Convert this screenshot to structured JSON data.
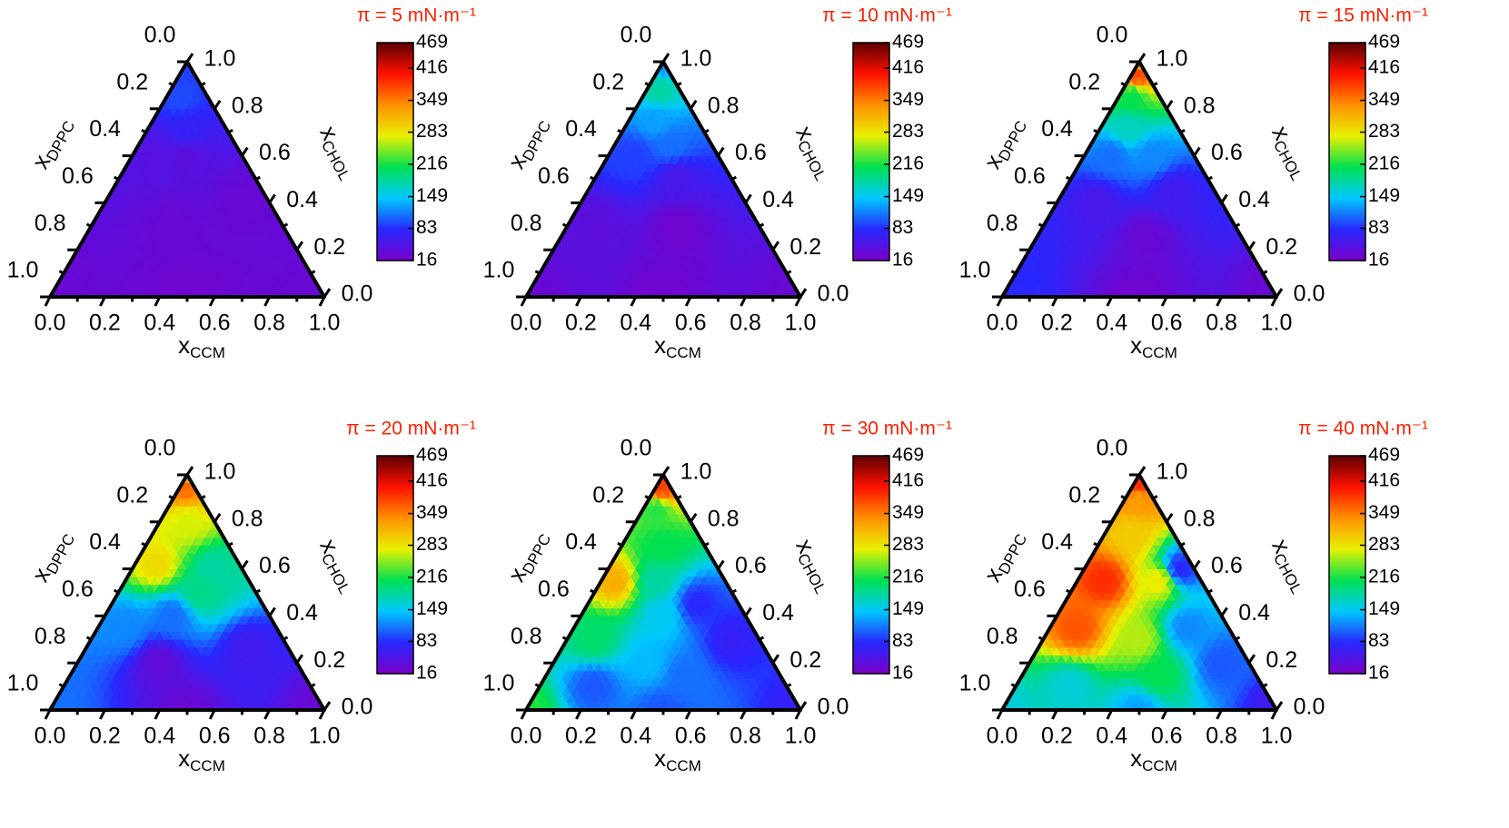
{
  "chart_data": [
    {
      "type": "ternary-contour",
      "title": "π = 5 mN·m⁻¹",
      "bottom_label": [
        "x",
        "CCM"
      ],
      "left_label": [
        "x",
        "DPPC"
      ],
      "right_label": [
        "x",
        "CHOL"
      ],
      "ccm_ticks": [
        {
          "value": 0,
          "label": "0.0"
        },
        {
          "value": 0.2,
          "label": "0.2"
        },
        {
          "value": 0.4,
          "label": "0.4"
        },
        {
          "value": 0.6,
          "label": "0.6"
        },
        {
          "value": 0.8,
          "label": "0.8"
        },
        {
          "value": 1,
          "label": "1.0"
        }
      ],
      "dppc_ticks": [
        {
          "value": 0,
          "label": "0.0"
        },
        {
          "value": 0.2,
          "label": "0.2"
        },
        {
          "value": 0.4,
          "label": "0.4"
        },
        {
          "value": 0.6,
          "label": "0.6"
        },
        {
          "value": 0.8,
          "label": "0.8"
        },
        {
          "value": 1,
          "label": "1.0"
        }
      ],
      "chol_ticks": [
        {
          "value": 0,
          "label": "0.0"
        },
        {
          "value": 0.2,
          "label": "0.2"
        },
        {
          "value": 0.4,
          "label": "0.4"
        },
        {
          "value": 0.6,
          "label": "0.6"
        },
        {
          "value": 0.8,
          "label": "0.8"
        },
        {
          "value": 1,
          "label": "1.0"
        }
      ],
      "ylim": [
        16,
        469
      ],
      "yticks": [
        16,
        83,
        149,
        216,
        283,
        349,
        416,
        469
      ],
      "colormap": [
        "#7a00c8",
        "#2828ff",
        "#00c8ff",
        "#00e050",
        "#e8f000",
        "#ff9000",
        "#ff1000",
        "#5a0000"
      ],
      "field": [
        [
          0,
          0,
          30
        ],
        [
          1,
          0,
          30
        ],
        [
          0.5,
          0,
          25
        ],
        [
          0.3,
          0.3,
          30
        ],
        [
          0.5,
          0.4,
          30
        ],
        [
          0.1,
          0.6,
          45
        ],
        [
          0.2,
          0.6,
          40
        ],
        [
          0.15,
          0.7,
          70
        ],
        [
          0.05,
          0.85,
          95
        ],
        [
          0,
          1,
          90
        ]
      ]
    },
    {
      "type": "ternary-contour",
      "title": "π = 10 mN·m⁻¹",
      "bottom_label": [
        "x",
        "CCM"
      ],
      "left_label": [
        "x",
        "DPPC"
      ],
      "right_label": [
        "x",
        "CHOL"
      ],
      "ccm_ticks": [
        {
          "value": 0,
          "label": "0.0"
        },
        {
          "value": 0.2,
          "label": "0.2"
        },
        {
          "value": 0.4,
          "label": "0.4"
        },
        {
          "value": 0.6,
          "label": "0.6"
        },
        {
          "value": 0.8,
          "label": "0.8"
        },
        {
          "value": 1,
          "label": "1.0"
        }
      ],
      "dppc_ticks": [
        {
          "value": 0,
          "label": "0.0"
        },
        {
          "value": 0.2,
          "label": "0.2"
        },
        {
          "value": 0.4,
          "label": "0.4"
        },
        {
          "value": 0.6,
          "label": "0.6"
        },
        {
          "value": 0.8,
          "label": "0.8"
        },
        {
          "value": 1,
          "label": "1.0"
        }
      ],
      "chol_ticks": [
        {
          "value": 0,
          "label": "0.0"
        },
        {
          "value": 0.2,
          "label": "0.2"
        },
        {
          "value": 0.4,
          "label": "0.4"
        },
        {
          "value": 0.6,
          "label": "0.6"
        },
        {
          "value": 0.8,
          "label": "0.8"
        },
        {
          "value": 1,
          "label": "1.0"
        }
      ],
      "ylim": [
        16,
        469
      ],
      "yticks": [
        16,
        83,
        149,
        216,
        283,
        349,
        416,
        469
      ],
      "colormap": [
        "#7a00c8",
        "#2828ff",
        "#00c8ff",
        "#00e050",
        "#e8f000",
        "#ff9000",
        "#ff1000",
        "#5a0000"
      ],
      "field": [
        [
          0,
          0,
          30
        ],
        [
          1,
          0,
          30
        ],
        [
          0.5,
          0,
          25
        ],
        [
          0.4,
          0.3,
          25
        ],
        [
          0.1,
          0.3,
          40
        ],
        [
          0.3,
          0.5,
          55
        ],
        [
          0.1,
          0.6,
          90
        ],
        [
          0.2,
          0.65,
          110
        ],
        [
          0.1,
          0.75,
          130
        ],
        [
          0.05,
          0.88,
          180
        ],
        [
          0,
          1,
          120
        ]
      ]
    },
    {
      "type": "ternary-contour",
      "title": "π = 15 mN·m⁻¹",
      "bottom_label": [
        "x",
        "CCM"
      ],
      "left_label": [
        "x",
        "DPPC"
      ],
      "right_label": [
        "x",
        "CHOL"
      ],
      "ccm_ticks": [
        {
          "value": 0,
          "label": "0.0"
        },
        {
          "value": 0.2,
          "label": "0.2"
        },
        {
          "value": 0.4,
          "label": "0.4"
        },
        {
          "value": 0.6,
          "label": "0.6"
        },
        {
          "value": 0.8,
          "label": "0.8"
        },
        {
          "value": 1,
          "label": "1.0"
        }
      ],
      "dppc_ticks": [
        {
          "value": 0,
          "label": "0.0"
        },
        {
          "value": 0.2,
          "label": "0.2"
        },
        {
          "value": 0.4,
          "label": "0.4"
        },
        {
          "value": 0.6,
          "label": "0.6"
        },
        {
          "value": 0.8,
          "label": "0.8"
        },
        {
          "value": 1,
          "label": "1.0"
        }
      ],
      "chol_ticks": [
        {
          "value": 0,
          "label": "0.0"
        },
        {
          "value": 0.2,
          "label": "0.2"
        },
        {
          "value": 0.4,
          "label": "0.4"
        },
        {
          "value": 0.6,
          "label": "0.6"
        },
        {
          "value": 0.8,
          "label": "0.8"
        },
        {
          "value": 1,
          "label": "1.0"
        }
      ],
      "ylim": [
        16,
        469
      ],
      "yticks": [
        16,
        83,
        149,
        216,
        283,
        349,
        416,
        469
      ],
      "colormap": [
        "#7a00c8",
        "#2828ff",
        "#00c8ff",
        "#00e050",
        "#e8f000",
        "#ff9000",
        "#ff1000",
        "#5a0000"
      ],
      "field": [
        [
          0,
          0,
          80
        ],
        [
          1,
          0,
          30
        ],
        [
          0.5,
          0,
          25
        ],
        [
          0.4,
          0.25,
          30
        ],
        [
          0.15,
          0.4,
          55
        ],
        [
          0.4,
          0.45,
          60
        ],
        [
          0.1,
          0.6,
          110
        ],
        [
          0.25,
          0.6,
          120
        ],
        [
          0.1,
          0.72,
          170
        ],
        [
          0.05,
          0.85,
          210
        ],
        [
          0.02,
          0.95,
          380
        ],
        [
          0,
          1,
          300
        ]
      ]
    },
    {
      "type": "ternary-contour",
      "title": "π = 20 mN·m⁻¹",
      "bottom_label": [
        "x",
        "CCM"
      ],
      "left_label": [
        "x",
        "DPPC"
      ],
      "right_label": [
        "x",
        "CHOL"
      ],
      "ccm_ticks": [
        {
          "value": 0,
          "label": "0.0"
        },
        {
          "value": 0.2,
          "label": "0.2"
        },
        {
          "value": 0.4,
          "label": "0.4"
        },
        {
          "value": 0.6,
          "label": "0.6"
        },
        {
          "value": 0.8,
          "label": "0.8"
        },
        {
          "value": 1,
          "label": "1.0"
        }
      ],
      "dppc_ticks": [
        {
          "value": 0,
          "label": "0.0"
        },
        {
          "value": 0.2,
          "label": "0.2"
        },
        {
          "value": 0.4,
          "label": "0.4"
        },
        {
          "value": 0.6,
          "label": "0.6"
        },
        {
          "value": 0.8,
          "label": "0.8"
        },
        {
          "value": 1,
          "label": "1.0"
        }
      ],
      "chol_ticks": [
        {
          "value": 0,
          "label": "0.0"
        },
        {
          "value": 0.2,
          "label": "0.2"
        },
        {
          "value": 0.4,
          "label": "0.4"
        },
        {
          "value": 0.6,
          "label": "0.6"
        },
        {
          "value": 0.8,
          "label": "0.8"
        },
        {
          "value": 1,
          "label": "1.0"
        }
      ],
      "ylim": [
        16,
        469
      ],
      "yticks": [
        16,
        83,
        149,
        216,
        283,
        349,
        416,
        469
      ],
      "colormap": [
        "#7a00c8",
        "#2828ff",
        "#00c8ff",
        "#00e050",
        "#e8f000",
        "#ff9000",
        "#ff1000",
        "#5a0000"
      ],
      "field": [
        [
          0,
          0,
          110
        ],
        [
          1,
          0,
          30
        ],
        [
          0.5,
          0,
          30
        ],
        [
          0.3,
          0.2,
          35
        ],
        [
          0.6,
          0.25,
          60
        ],
        [
          0.1,
          0.35,
          120
        ],
        [
          0.25,
          0.4,
          110
        ],
        [
          0.3,
          0.5,
          190
        ],
        [
          0.08,
          0.62,
          290
        ],
        [
          0.3,
          0.6,
          180
        ],
        [
          0.1,
          0.8,
          270
        ],
        [
          0.02,
          0.95,
          360
        ],
        [
          0,
          1,
          300
        ]
      ]
    },
    {
      "type": "ternary-contour",
      "title": "π = 30 mN·m⁻¹",
      "bottom_label": [
        "x",
        "CCM"
      ],
      "left_label": [
        "x",
        "DPPC"
      ],
      "right_label": [
        "x",
        "CHOL"
      ],
      "ccm_ticks": [
        {
          "value": 0,
          "label": "0.0"
        },
        {
          "value": 0.2,
          "label": "0.2"
        },
        {
          "value": 0.4,
          "label": "0.4"
        },
        {
          "value": 0.6,
          "label": "0.6"
        },
        {
          "value": 0.8,
          "label": "0.8"
        },
        {
          "value": 1,
          "label": "1.0"
        }
      ],
      "dppc_ticks": [
        {
          "value": 0,
          "label": "0.0"
        },
        {
          "value": 0.2,
          "label": "0.2"
        },
        {
          "value": 0.4,
          "label": "0.4"
        },
        {
          "value": 0.6,
          "label": "0.6"
        },
        {
          "value": 0.8,
          "label": "0.8"
        },
        {
          "value": 1,
          "label": "1.0"
        }
      ],
      "chol_ticks": [
        {
          "value": 0,
          "label": "0.0"
        },
        {
          "value": 0.2,
          "label": "0.2"
        },
        {
          "value": 0.4,
          "label": "0.4"
        },
        {
          "value": 0.6,
          "label": "0.6"
        },
        {
          "value": 0.8,
          "label": "0.8"
        },
        {
          "value": 1,
          "label": "1.0"
        }
      ],
      "ylim": [
        16,
        469
      ],
      "yticks": [
        16,
        83,
        149,
        216,
        283,
        349,
        416,
        469
      ],
      "colormap": [
        "#7a00c8",
        "#2828ff",
        "#00c8ff",
        "#00e050",
        "#e8f000",
        "#ff9000",
        "#ff1000",
        "#5a0000"
      ],
      "field": [
        [
          0,
          0,
          220
        ],
        [
          1,
          0,
          70
        ],
        [
          0.5,
          0,
          100
        ],
        [
          0.2,
          0.1,
          100
        ],
        [
          0.5,
          0.15,
          110
        ],
        [
          0.35,
          0.2,
          140
        ],
        [
          0.1,
          0.3,
          200
        ],
        [
          0.6,
          0.3,
          70
        ],
        [
          0.3,
          0.4,
          150
        ],
        [
          0.05,
          0.55,
          320
        ],
        [
          0.2,
          0.55,
          180
        ],
        [
          0.4,
          0.45,
          80
        ],
        [
          0.15,
          0.7,
          210
        ],
        [
          0.05,
          0.85,
          220
        ],
        [
          0.02,
          0.95,
          380
        ]
      ]
    },
    {
      "type": "ternary-contour",
      "title": "π = 40 mN·m⁻¹",
      "bottom_label": [
        "x",
        "CCM"
      ],
      "left_label": [
        "x",
        "DPPC"
      ],
      "right_label": [
        "x",
        "CHOL"
      ],
      "ccm_ticks": [
        {
          "value": 0,
          "label": "0.0"
        },
        {
          "value": 0.2,
          "label": "0.2"
        },
        {
          "value": 0.4,
          "label": "0.4"
        },
        {
          "value": 0.6,
          "label": "0.6"
        },
        {
          "value": 0.8,
          "label": "0.8"
        },
        {
          "value": 1,
          "label": "1.0"
        }
      ],
      "dppc_ticks": [
        {
          "value": 0,
          "label": "0.0"
        },
        {
          "value": 0.2,
          "label": "0.2"
        },
        {
          "value": 0.4,
          "label": "0.4"
        },
        {
          "value": 0.6,
          "label": "0.6"
        },
        {
          "value": 0.8,
          "label": "0.8"
        },
        {
          "value": 1,
          "label": "1.0"
        }
      ],
      "chol_ticks": [
        {
          "value": 0,
          "label": "0.0"
        },
        {
          "value": 0.2,
          "label": "0.2"
        },
        {
          "value": 0.4,
          "label": "0.4"
        },
        {
          "value": 0.6,
          "label": "0.6"
        },
        {
          "value": 0.8,
          "label": "0.8"
        },
        {
          "value": 1,
          "label": "1.0"
        }
      ],
      "ylim": [
        16,
        469
      ],
      "yticks": [
        16,
        83,
        149,
        216,
        283,
        349,
        416,
        469
      ],
      "colormap": [
        "#7a00c8",
        "#2828ff",
        "#00c8ff",
        "#00e050",
        "#e8f000",
        "#ff9000",
        "#ff1000",
        "#5a0000"
      ],
      "field": [
        [
          0,
          0,
          160
        ],
        [
          1,
          0,
          60
        ],
        [
          0.5,
          0,
          130
        ],
        [
          0.2,
          0.1,
          160
        ],
        [
          0.5,
          0.15,
          210
        ],
        [
          0.7,
          0.2,
          100
        ],
        [
          0.1,
          0.35,
          370
        ],
        [
          0.35,
          0.3,
          260
        ],
        [
          0.5,
          0.35,
          120
        ],
        [
          0.1,
          0.55,
          390
        ],
        [
          0.3,
          0.55,
          280
        ],
        [
          0.35,
          0.6,
          80
        ],
        [
          0.1,
          0.75,
          300
        ],
        [
          0.05,
          0.9,
          330
        ],
        [
          0.02,
          0.96,
          390
        ]
      ]
    }
  ]
}
